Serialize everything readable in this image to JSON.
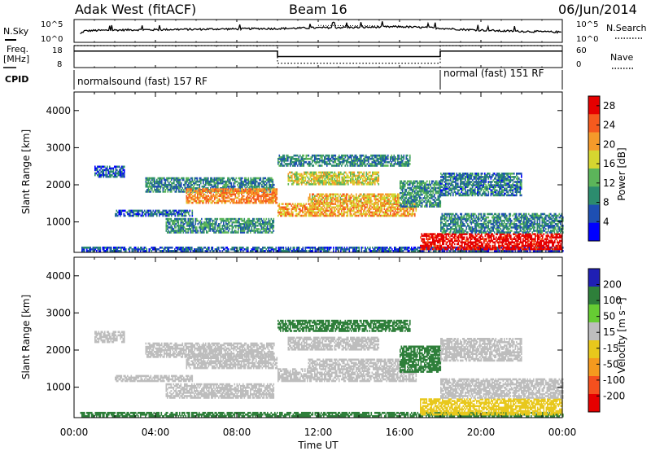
{
  "header": {
    "station": "Adak West (fitACF)",
    "beam": "Beam 16",
    "date": "06/Jun/2014"
  },
  "side_labels": {
    "nsky": "N.Sky",
    "nsearch": "N.Search",
    "freq_line1": "Freq.",
    "freq_line2": "[MHz]",
    "nave": "Nave",
    "cpid": "CPID"
  },
  "top_axes": {
    "noise_left_ticks": [
      "10^5",
      "10^0"
    ],
    "noise_right_ticks": [
      "10^5",
      "10^0"
    ],
    "freq_ticks": [
      "18",
      "8"
    ],
    "nave_ticks": [
      "60",
      "0"
    ]
  },
  "cpid_modes": [
    {
      "label": "normalsound (fast) 157 RF",
      "start_hour": 0,
      "end_hour": 18
    },
    {
      "label": "normal (fast) 151 RF",
      "start_hour": 18,
      "end_hour": 24
    }
  ],
  "x_axis": {
    "label": "Time UT",
    "ticks": [
      "00:00",
      "04:00",
      "08:00",
      "12:00",
      "16:00",
      "20:00",
      "00:00"
    ]
  },
  "colors": {
    "power_scale": [
      "#0000ff",
      "#1e4fb2",
      "#2c8c6e",
      "#5cb55a",
      "#d6d630",
      "#f59a2a",
      "#f55a1e",
      "#e60000"
    ],
    "velocity_scale": [
      "#1f1fb4",
      "#2e7f3a",
      "#66cc33",
      "#bdbdbd",
      "#e8c81c",
      "#f59a1e",
      "#f5501e",
      "#e60000"
    ]
  },
  "chart_data": [
    {
      "type": "line",
      "panel": "noise",
      "x_unit": "hour UT",
      "x": [
        0,
        0.5,
        1,
        2,
        3,
        4,
        5,
        6,
        7,
        8,
        9,
        10,
        11,
        12,
        13,
        14,
        15,
        16,
        17,
        18,
        19,
        20,
        21,
        22,
        23,
        24
      ],
      "series": [
        {
          "name": "N.Sky",
          "values": [
            0.5,
            2.5,
            2.6,
            2.7,
            2.8,
            2.8,
            2.9,
            2.9,
            3.0,
            3.0,
            3.1,
            3.1,
            3.2,
            3.3,
            3.4,
            3.4,
            3.5,
            3.6,
            3.4,
            3.2,
            2.9,
            2.7,
            2.5,
            2.4,
            2.3,
            2.2
          ]
        }
      ]
    },
    {
      "type": "line",
      "panel": "frequency",
      "ylabel": "Freq. [MHz]",
      "ylim": [
        8,
        18
      ],
      "series": [
        {
          "name": "Freq.",
          "x": [
            0,
            10,
            10,
            18,
            18,
            24
          ],
          "values": [
            15.5,
            15.5,
            13.0,
            13.0,
            15.5,
            15.5
          ]
        },
        {
          "name": "Nave",
          "x": [
            0,
            10,
            10,
            18,
            18,
            24
          ],
          "values": [
            18,
            18,
            10,
            10,
            18,
            18
          ]
        }
      ]
    },
    {
      "type": "heatmap",
      "panel": "power",
      "ylabel": "Slant Range [km]",
      "colorbar_label": "Power [dB]",
      "xlim": [
        0,
        24
      ],
      "ylim": [
        180,
        4500
      ],
      "yticks": [
        1000,
        2000,
        3000,
        4000
      ],
      "colorbar_ticks": [
        4,
        8,
        12,
        16,
        20,
        24,
        28
      ],
      "colorbar_range": [
        0,
        30
      ],
      "echo_regions": [
        {
          "t": [
            0.3,
            24
          ],
          "r": [
            200,
            320
          ],
          "v": 6
        },
        {
          "t": [
            2.0,
            5.8
          ],
          "r": [
            1150,
            1300
          ],
          "v": 7
        },
        {
          "t": [
            4.5,
            9.8
          ],
          "r": [
            700,
            1100
          ],
          "v": 10
        },
        {
          "t": [
            3.5,
            9.8
          ],
          "r": [
            1800,
            2200
          ],
          "v": 9
        },
        {
          "t": [
            5.5,
            10.0
          ],
          "r": [
            1500,
            1900
          ],
          "v": 22
        },
        {
          "t": [
            10.0,
            16.8
          ],
          "r": [
            1150,
            1500
          ],
          "v": 20
        },
        {
          "t": [
            11.5,
            16.0
          ],
          "r": [
            1500,
            1750
          ],
          "v": 19
        },
        {
          "t": [
            10.5,
            15.0
          ],
          "r": [
            2000,
            2350
          ],
          "v": 17
        },
        {
          "t": [
            10.0,
            16.5
          ],
          "r": [
            2500,
            2800
          ],
          "v": 9
        },
        {
          "t": [
            16.0,
            18.0
          ],
          "r": [
            1400,
            2100
          ],
          "v": 10
        },
        {
          "t": [
            17.0,
            24.0
          ],
          "r": [
            250,
            700
          ],
          "v": 29
        },
        {
          "t": [
            18.0,
            24.0
          ],
          "r": [
            700,
            1200
          ],
          "v": 9
        },
        {
          "t": [
            18.0,
            22.0
          ],
          "r": [
            1700,
            2300
          ],
          "v": 8
        },
        {
          "t": [
            1.0,
            2.5
          ],
          "r": [
            2200,
            2500
          ],
          "v": 6
        }
      ]
    },
    {
      "type": "heatmap",
      "panel": "velocity",
      "ylabel": "Slant Range [km]",
      "colorbar_label": "Velocity [m s⁻¹]",
      "xlim": [
        0,
        24
      ],
      "ylim": [
        180,
        4500
      ],
      "yticks": [
        1000,
        2000,
        3000,
        4000
      ],
      "colorbar_ticks": [
        200,
        100,
        50,
        15,
        -15,
        -50,
        -100,
        -200
      ],
      "echo_regions": [
        {
          "t": [
            0.3,
            24
          ],
          "r": [
            200,
            320
          ],
          "v": 60
        },
        {
          "t": [
            2.0,
            5.8
          ],
          "r": [
            1150,
            1300
          ],
          "v": 0
        },
        {
          "t": [
            4.5,
            9.8
          ],
          "r": [
            700,
            1100
          ],
          "v": 0
        },
        {
          "t": [
            3.5,
            9.8
          ],
          "r": [
            1800,
            2200
          ],
          "v": 0
        },
        {
          "t": [
            5.5,
            10.0
          ],
          "r": [
            1500,
            1900
          ],
          "v": 0
        },
        {
          "t": [
            10.0,
            16.8
          ],
          "r": [
            1150,
            1500
          ],
          "v": 0
        },
        {
          "t": [
            11.5,
            16.0
          ],
          "r": [
            1500,
            1750
          ],
          "v": 0
        },
        {
          "t": [
            10.5,
            15.0
          ],
          "r": [
            2000,
            2350
          ],
          "v": 5
        },
        {
          "t": [
            10.0,
            16.5
          ],
          "r": [
            2500,
            2800
          ],
          "v": 60
        },
        {
          "t": [
            16.0,
            18.0
          ],
          "r": [
            1400,
            2100
          ],
          "v": 60
        },
        {
          "t": [
            17.0,
            24.0
          ],
          "r": [
            250,
            700
          ],
          "v": -30
        },
        {
          "t": [
            18.0,
            24.0
          ],
          "r": [
            700,
            1200
          ],
          "v": 0
        },
        {
          "t": [
            18.0,
            22.0
          ],
          "r": [
            1700,
            2300
          ],
          "v": 0
        },
        {
          "t": [
            1.0,
            2.5
          ],
          "r": [
            2200,
            2500
          ],
          "v": 0
        }
      ]
    }
  ]
}
